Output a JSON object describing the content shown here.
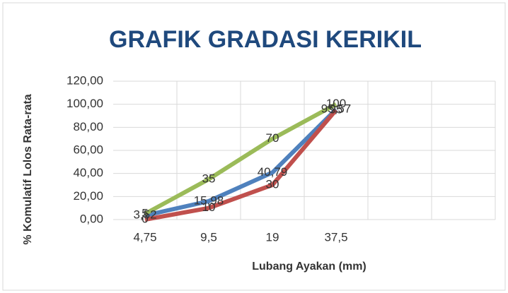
{
  "chart_data": {
    "type": "line",
    "title": "GRAFIK GRADASI KERIKIL",
    "xlabel": "Lubang Ayakan (mm)",
    "ylabel": "% Komulatif Lolos Rata-rata",
    "categories": [
      "4,75",
      "9,5",
      "19",
      "37,5",
      null,
      null
    ],
    "series": [
      {
        "color": "#4f81bd",
        "values": [
          3.52,
          15.98,
          40.79,
          95.57,
          null,
          null
        ],
        "value_labels": [
          "3,52",
          "15,98",
          "40,79",
          "95,57",
          null,
          null
        ]
      },
      {
        "color": "#c0504d",
        "values": [
          0,
          10,
          30,
          95,
          null,
          null
        ]
      },
      {
        "color": "#9bbb59",
        "values": [
          5,
          35,
          70,
          100,
          null,
          null
        ]
      }
    ],
    "ylim": [
      0,
      120
    ],
    "yticks": [
      {
        "value": 0,
        "label": "0,00"
      },
      {
        "value": 20,
        "label": "20,00"
      },
      {
        "value": 40,
        "label": "40,00"
      },
      {
        "value": 60,
        "label": "60,00"
      },
      {
        "value": 80,
        "label": "80,00"
      },
      {
        "value": 100,
        "label": "100,00"
      },
      {
        "value": 120,
        "label": "120,00"
      }
    ],
    "grid": true
  }
}
